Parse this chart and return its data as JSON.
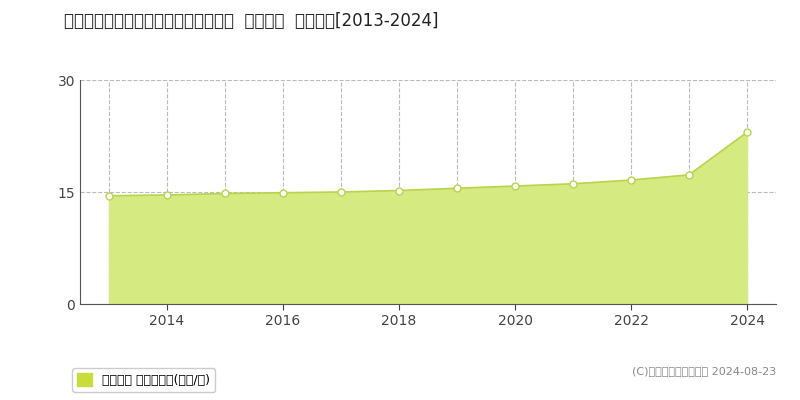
{
  "title": "宮城県名取市飯野坂６丁目３１５番外  地価公示  地価推移[2013-2024]",
  "years": [
    2013,
    2014,
    2015,
    2016,
    2017,
    2018,
    2019,
    2020,
    2021,
    2022,
    2023,
    2024
  ],
  "values": [
    14.5,
    14.6,
    14.8,
    14.9,
    15.0,
    15.2,
    15.5,
    15.8,
    16.1,
    16.6,
    17.3,
    23.0
  ],
  "line_color": "#b8d44a",
  "fill_color": "#d6ea82",
  "fill_alpha": 1.0,
  "marker_color": "#ffffff",
  "marker_edge_color": "#b8d44a",
  "marker_size": 5,
  "ylim": [
    0,
    30
  ],
  "yticks": [
    0,
    15,
    30
  ],
  "grid_color": "#bbbbbb",
  "grid_style": "--",
  "background_color": "#ffffff",
  "legend_label": "地価公示 平均坪単価(万円/坪)",
  "legend_color": "#c8dc3c",
  "copyright_text": "(C)土地価格ドットコム 2024-08-23",
  "title_fontsize": 12,
  "tick_fontsize": 10,
  "legend_fontsize": 9,
  "xticks": [
    2014,
    2016,
    2018,
    2020,
    2022,
    2024
  ]
}
